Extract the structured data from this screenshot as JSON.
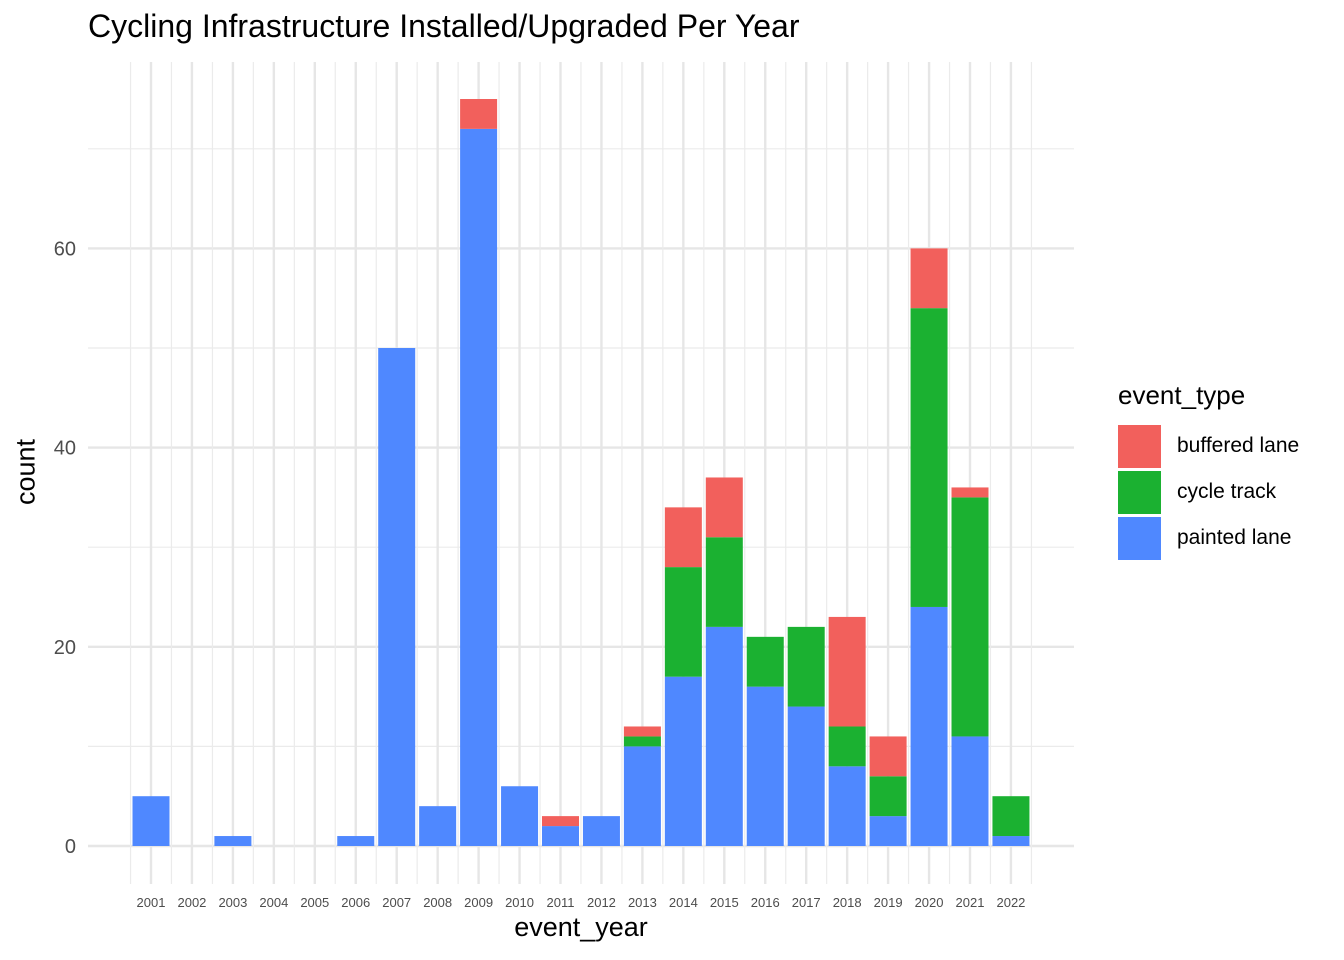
{
  "chart_data": {
    "type": "bar",
    "stacked": true,
    "title": "Cycling Infrastructure Installed/Upgraded Per Year",
    "xlabel": "event_year",
    "ylabel": "count",
    "categories": [
      "2001",
      "2002",
      "2003",
      "2004",
      "2005",
      "2006",
      "2007",
      "2008",
      "2009",
      "2010",
      "2011",
      "2012",
      "2013",
      "2014",
      "2015",
      "2016",
      "2017",
      "2018",
      "2019",
      "2020",
      "2021",
      "2022"
    ],
    "series": [
      {
        "name": "painted lane",
        "color": "#4f88ff",
        "values": [
          5,
          0,
          1,
          0,
          0,
          1,
          50,
          4,
          72,
          6,
          2,
          3,
          10,
          17,
          22,
          16,
          14,
          8,
          3,
          24,
          11,
          1
        ]
      },
      {
        "name": "cycle track",
        "color": "#1bb131",
        "values": [
          0,
          0,
          0,
          0,
          0,
          0,
          0,
          0,
          0,
          0,
          0,
          0,
          1,
          11,
          9,
          5,
          8,
          4,
          4,
          30,
          24,
          4
        ]
      },
      {
        "name": "buffered lane",
        "color": "#f2605c",
        "values": [
          0,
          0,
          0,
          0,
          0,
          0,
          0,
          0,
          3,
          0,
          1,
          0,
          1,
          6,
          6,
          0,
          0,
          11,
          4,
          6,
          1,
          0
        ]
      }
    ],
    "yticks": [
      0,
      20,
      40,
      60
    ],
    "ylim": [
      -3,
      79
    ],
    "grid": true,
    "legend": {
      "title": "event_type",
      "placement": "right",
      "items": [
        {
          "label": "buffered lane",
          "color": "#f2605c"
        },
        {
          "label": "cycle track",
          "color": "#1bb131"
        },
        {
          "label": "painted lane",
          "color": "#4f88ff"
        }
      ]
    }
  }
}
